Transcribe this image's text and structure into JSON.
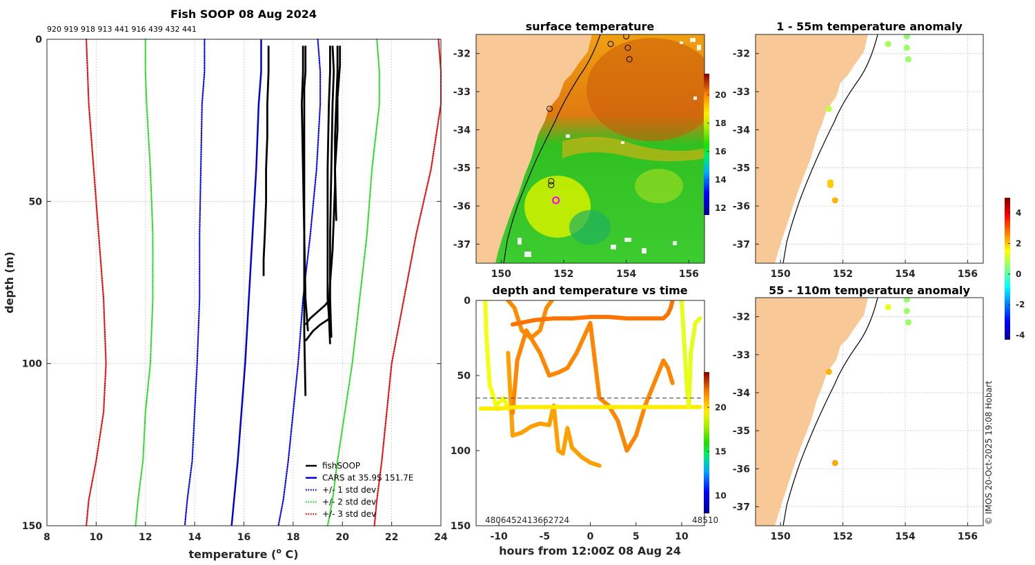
{
  "chart_data": [
    {
      "id": "profile",
      "type": "line",
      "title": "Fish SOOP 08 Aug 2024",
      "xlabel_main": "temperature (",
      "xlabel_sup": "o",
      "xlabel_end": " C)",
      "ylabel": "depth (m)",
      "xlim": [
        8,
        24
      ],
      "ylim": [
        150,
        0
      ],
      "xticks": [
        "8",
        "10",
        "12",
        "14",
        "16",
        "18",
        "20",
        "22",
        "24"
      ],
      "yticks": [
        "0",
        "50",
        "100",
        "150"
      ],
      "top_ids": "920 919 918 913 441 916 439 432 441",
      "legend": [
        {
          "label": "fishSOOP",
          "color": "#000000",
          "style": "solid"
        },
        {
          "label": "CARS at 35.9S 151.7E",
          "color": "#0000dd",
          "style": "solid"
        },
        {
          "label": "+/- 1 std dev",
          "color": "#0000ff",
          "style": "dotted"
        },
        {
          "label": "+/- 2 std dev",
          "color": "#22dd22",
          "style": "dotted"
        },
        {
          "label": "+/- 3 std dev",
          "color": "#ee0000",
          "style": "dotted"
        }
      ],
      "series": [
        {
          "name": "CARS",
          "color": "#0000dd",
          "style": "solid",
          "x": [
            16.7,
            16.7,
            16.6,
            16.5,
            16.35,
            16.2,
            16.05,
            15.9,
            15.75,
            15.6,
            15.5
          ],
          "depth": [
            0,
            10,
            20,
            40,
            60,
            80,
            100,
            115,
            130,
            142,
            150
          ]
        },
        {
          "name": "CARS-1sd",
          "color": "#0000ff",
          "style": "dotted",
          "x": [
            14.4,
            14.4,
            14.3,
            14.25,
            14.2,
            14.2,
            14.1,
            14.0,
            13.9,
            13.7,
            13.6
          ],
          "depth": [
            0,
            10,
            20,
            40,
            60,
            80,
            100,
            115,
            130,
            142,
            150
          ]
        },
        {
          "name": "CARS+1sd",
          "color": "#0000ff",
          "style": "dotted",
          "x": [
            19.0,
            19.1,
            19.1,
            18.95,
            18.7,
            18.4,
            18.2,
            18.0,
            17.8,
            17.6,
            17.4
          ],
          "depth": [
            0,
            10,
            20,
            40,
            60,
            80,
            100,
            115,
            130,
            142,
            150
          ]
        },
        {
          "name": "CARS-2sd",
          "color": "#22dd22",
          "style": "dotted",
          "x": [
            12.0,
            12.0,
            12.05,
            12.2,
            12.3,
            12.3,
            12.2,
            12.0,
            11.9,
            11.7,
            11.6
          ],
          "depth": [
            0,
            10,
            20,
            40,
            60,
            80,
            100,
            115,
            130,
            142,
            150
          ]
        },
        {
          "name": "CARS+2sd",
          "color": "#22dd22",
          "style": "dotted",
          "x": [
            21.4,
            21.5,
            21.5,
            21.2,
            21.0,
            20.7,
            20.4,
            20.1,
            19.8,
            19.6,
            19.4
          ],
          "depth": [
            0,
            10,
            20,
            40,
            60,
            80,
            100,
            115,
            130,
            142,
            150
          ]
        },
        {
          "name": "CARS-3sd",
          "color": "#ee0000",
          "style": "dotted",
          "x": [
            9.6,
            9.65,
            9.7,
            9.9,
            10.1,
            10.3,
            10.4,
            10.3,
            10.0,
            9.7,
            9.6
          ],
          "depth": [
            0,
            10,
            20,
            40,
            60,
            80,
            100,
            115,
            130,
            142,
            150
          ]
        },
        {
          "name": "CARS+3sd",
          "color": "#ee0000",
          "style": "dotted",
          "x": [
            23.9,
            24.0,
            24.0,
            23.6,
            23.0,
            22.5,
            22.0,
            21.8,
            21.6,
            21.4,
            21.3
          ],
          "depth": [
            0,
            10,
            20,
            40,
            60,
            80,
            100,
            115,
            130,
            142,
            150
          ]
        }
      ],
      "fish_profiles": [
        {
          "x": [
            17.0,
            17.0,
            16.95,
            16.95,
            16.9,
            16.9,
            16.85,
            16.8,
            16.8,
            16.8
          ],
          "depth": [
            2,
            10,
            20,
            30,
            40,
            50,
            60,
            68,
            72,
            73
          ]
        },
        {
          "x": [
            18.4,
            18.4,
            18.35,
            18.4,
            18.45,
            18.5,
            18.6
          ],
          "depth": [
            2,
            10,
            20,
            40,
            60,
            80,
            90
          ]
        },
        {
          "x": [
            18.5,
            18.5,
            18.45,
            18.45,
            18.45,
            18.5
          ],
          "depth": [
            2,
            10,
            15,
            60,
            90,
            110
          ]
        },
        {
          "x": [
            19.5,
            19.5,
            19.45,
            19.4,
            19.4,
            19.4,
            19.45,
            19.5
          ],
          "depth": [
            2,
            10,
            20,
            40,
            60,
            80,
            85,
            90
          ]
        },
        {
          "x": [
            19.6,
            19.65,
            19.6,
            19.55,
            19.5,
            19.5,
            19.55
          ],
          "depth": [
            2,
            10,
            20,
            40,
            60,
            80,
            92
          ]
        },
        {
          "x": [
            19.8,
            19.8,
            19.75,
            19.7,
            19.7,
            19.65,
            19.6,
            19.5,
            19.45,
            19.5
          ],
          "depth": [
            2,
            10,
            20,
            30,
            45,
            55,
            65,
            75,
            85,
            94
          ]
        },
        {
          "x": [
            19.9,
            19.9,
            19.8,
            19.8,
            19.7,
            19.75
          ],
          "depth": [
            2,
            8,
            18,
            28,
            40,
            56
          ]
        },
        {
          "x": [
            18.5,
            18.7,
            19.0,
            19.3,
            19.5
          ],
          "depth": [
            88,
            86,
            84,
            82,
            80
          ]
        },
        {
          "x": [
            18.5,
            18.8,
            19.1,
            19.5
          ],
          "depth": [
            93,
            90,
            88,
            86
          ]
        }
      ]
    },
    {
      "id": "sst_map",
      "type": "heatmap",
      "title": "surface temperature",
      "xticks": [
        "150",
        "152",
        "154",
        "156"
      ],
      "yticks": [
        "-32",
        "-33",
        "-34",
        "-35",
        "-36",
        "-37"
      ],
      "lon_range": [
        149.2,
        156.5
      ],
      "lat_range": [
        -37.5,
        -31.5
      ],
      "colorbar_ticks": [
        "12",
        "14",
        "16",
        "18",
        "20"
      ],
      "colorbar_range": [
        11.5,
        21.5
      ],
      "stations": [
        {
          "lon": 154.0,
          "lat": -31.55
        },
        {
          "lon": 153.5,
          "lat": -31.75
        },
        {
          "lon": 154.05,
          "lat": -31.85
        },
        {
          "lon": 154.1,
          "lat": -32.15
        },
        {
          "lon": 151.55,
          "lat": -33.45
        },
        {
          "lon": 151.6,
          "lat": -35.35
        },
        {
          "lon": 151.6,
          "lat": -35.45
        }
      ],
      "current_station": {
        "lon": 151.75,
        "lat": -35.85
      }
    },
    {
      "id": "time_series",
      "type": "scatter",
      "title": "depth and temperature vs time",
      "xlabel": "hours from 12:00Z 08 Aug 24",
      "xticks": [
        "-10",
        "-5",
        "0",
        "5",
        "10"
      ],
      "yticks": [
        "0",
        "50",
        "100",
        "150"
      ],
      "xlim": [
        -12.5,
        12.5
      ],
      "ylim": [
        150,
        0
      ],
      "reference_depth": 65,
      "bottom_ids": "4806452413662724",
      "bottom_ids_right": "48510",
      "colorbar_ticks": [
        "10",
        "15",
        "20"
      ],
      "colorbar_range": [
        8,
        24
      ],
      "tracks": [
        {
          "temp": 17.8,
          "t": [
            -11.5,
            -11.4,
            -11.2,
            -11.0,
            -10.8,
            -10.3,
            -9.5,
            -9.0,
            -8.5
          ],
          "d": [
            0,
            20,
            40,
            57,
            60,
            70,
            65,
            72,
            73
          ]
        },
        {
          "temp": 19.8,
          "t": [
            -9.0,
            -8.3,
            -7.5,
            -6.5,
            -5.5,
            -4.8,
            -4.2
          ],
          "d": [
            0,
            5,
            20,
            25,
            20,
            5,
            0
          ]
        },
        {
          "temp": 19.5,
          "t": [
            -9.0,
            -8.5,
            -7.5,
            -6.5,
            -5.5,
            -4.5,
            -4.0,
            -3.5,
            -3.0,
            -2.5,
            -2.0,
            -1.0,
            0.0,
            1.0
          ],
          "d": [
            35,
            90,
            88,
            84,
            82,
            83,
            70,
            100,
            102,
            85,
            98,
            104,
            108,
            110
          ]
        },
        {
          "temp": 19.9,
          "t": [
            -8.5,
            -8.0,
            -7.0,
            -6.0,
            -5.5,
            -4.5,
            -3.5,
            -2.5,
            -1.5,
            0.0,
            1.0,
            2.0,
            3.0,
            4.0,
            5.0,
            6.0,
            7.0,
            8.0,
            8.5,
            9.0
          ],
          "d": [
            75,
            40,
            20,
            30,
            35,
            50,
            48,
            45,
            35,
            15,
            65,
            70,
            80,
            100,
            90,
            70,
            55,
            40,
            45,
            55
          ]
        },
        {
          "temp": 20.2,
          "t": [
            -8.5,
            -6.0,
            -4.0,
            -2.0,
            0.0,
            2.0,
            4.0,
            6.0,
            8.0,
            8.5,
            8.8,
            9.0
          ],
          "d": [
            16,
            13,
            12,
            12,
            11,
            11,
            12,
            12,
            12,
            9,
            5,
            0
          ]
        },
        {
          "temp": 18.3,
          "t": [
            -12.0,
            -10.0,
            -8.0,
            -6.0,
            -4.0,
            -2.0,
            0.0,
            2.0,
            4.0,
            6.0,
            8.0,
            10.0,
            12.0
          ],
          "d": [
            72,
            72,
            71,
            71,
            71,
            71,
            71,
            71,
            71,
            71,
            71,
            71,
            71
          ]
        },
        {
          "temp": 17.6,
          "t": [
            10.0,
            10.2,
            10.4,
            10.6,
            10.8,
            11.0,
            11.5,
            12.0
          ],
          "d": [
            0,
            20,
            40,
            60,
            71,
            35,
            15,
            12
          ]
        }
      ]
    },
    {
      "id": "anom_shallow",
      "type": "scatter",
      "title": "1 - 55m temperature anomaly",
      "xticks": [
        "150",
        "152",
        "154",
        "156"
      ],
      "yticks": [
        "-32",
        "-33",
        "-34",
        "-35",
        "-36",
        "-37"
      ],
      "lon_range": [
        149.2,
        156.5
      ],
      "lat_range": [
        -37.5,
        -31.5
      ],
      "points": [
        {
          "lon": 154.05,
          "lat": -31.55,
          "anom": 0.5
        },
        {
          "lon": 153.45,
          "lat": -31.75,
          "anom": 0.7
        },
        {
          "lon": 154.05,
          "lat": -31.85,
          "anom": 0.6
        },
        {
          "lon": 154.1,
          "lat": -32.15,
          "anom": 0.6
        },
        {
          "lon": 151.55,
          "lat": -33.45,
          "anom": 0.9
        },
        {
          "lon": 151.6,
          "lat": -35.38,
          "anom": 2.0
        },
        {
          "lon": 151.6,
          "lat": -35.45,
          "anom": 2.0
        },
        {
          "lon": 151.75,
          "lat": -35.85,
          "anom": 2.2
        }
      ]
    },
    {
      "id": "anom_deep",
      "type": "scatter",
      "title": "55 - 110m temperature anomaly",
      "xticks": [
        "150",
        "152",
        "154",
        "156"
      ],
      "yticks": [
        "-32",
        "-33",
        "-34",
        "-35",
        "-36",
        "-37"
      ],
      "lon_range": [
        149.2,
        156.5
      ],
      "lat_range": [
        -37.5,
        -31.5
      ],
      "colorbar_ticks": [
        "-4",
        "-2",
        "0",
        "2",
        "4"
      ],
      "colorbar_range": [
        -4.3,
        5.0
      ],
      "points": [
        {
          "lon": 154.05,
          "lat": -31.55,
          "anom": 0.5
        },
        {
          "lon": 153.45,
          "lat": -31.75,
          "anom": 1.3
        },
        {
          "lon": 154.05,
          "lat": -31.85,
          "anom": 0.6
        },
        {
          "lon": 154.1,
          "lat": -32.15,
          "anom": 0.6
        },
        {
          "lon": 151.55,
          "lat": -33.45,
          "anom": 2.2
        },
        {
          "lon": 151.75,
          "lat": -35.85,
          "anom": 2.3
        }
      ]
    }
  ],
  "credit": "© IMOS 20-Oct-2025 19:08 Hobart"
}
